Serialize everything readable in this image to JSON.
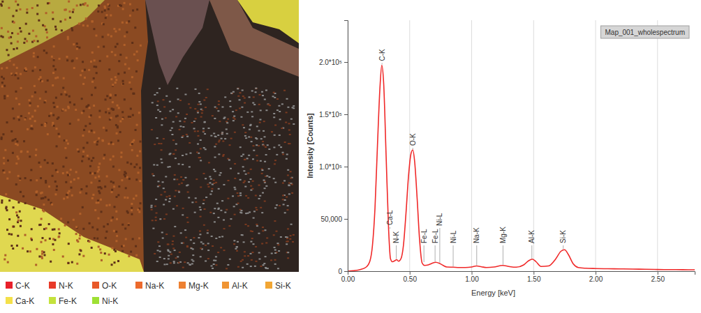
{
  "map": {
    "legend": [
      {
        "name": "C-K",
        "color": "#e8202a"
      },
      {
        "name": "N-K",
        "color": "#e83a28"
      },
      {
        "name": "O-K",
        "color": "#e85828"
      },
      {
        "name": "Na-K",
        "color": "#ec6a2c"
      },
      {
        "name": "Mg-K",
        "color": "#ee8030"
      },
      {
        "name": "Al-K",
        "color": "#f09432"
      },
      {
        "name": "Si-K",
        "color": "#f2a634"
      },
      {
        "name": "Ca-K",
        "color": "#f4e04a"
      },
      {
        "name": "Fe-K",
        "color": "#c4e23c"
      },
      {
        "name": "Ni-K",
        "color": "#9ee034"
      }
    ]
  },
  "chart_data": {
    "type": "line",
    "xlabel": "Energy [keV]",
    "ylabel": "Intensity [Counts]",
    "x": [
      0,
      0.05,
      0.1,
      0.15,
      0.18,
      0.2,
      0.22,
      0.24,
      0.26,
      0.275,
      0.29,
      0.31,
      0.33,
      0.345,
      0.36,
      0.38,
      0.395,
      0.41,
      0.43,
      0.45,
      0.47,
      0.49,
      0.51,
      0.525,
      0.54,
      0.56,
      0.58,
      0.6,
      0.62,
      0.65,
      0.68,
      0.71,
      0.74,
      0.77,
      0.8,
      0.85,
      0.9,
      0.95,
      1,
      1.04,
      1.08,
      1.12,
      1.18,
      1.25,
      1.3,
      1.36,
      1.42,
      1.46,
      1.49,
      1.52,
      1.56,
      1.62,
      1.68,
      1.72,
      1.75,
      1.78,
      1.82,
      1.86,
      1.92,
      2,
      2.1,
      2.2,
      2.3,
      2.4,
      2.5,
      2.6,
      2.7,
      2.8
    ],
    "series": [
      {
        "name": "Map_001_wholespectrum",
        "color": "#f02828",
        "values": [
          0,
          500,
          1500,
          4000,
          10000,
          25000,
          60000,
          120000,
          175000,
          197000,
          180000,
          110000,
          40000,
          12000,
          9000,
          10000,
          11000,
          9500,
          12000,
          25000,
          55000,
          90000,
          112000,
          116000,
          105000,
          70000,
          30000,
          8000,
          5500,
          6000,
          7500,
          8500,
          7500,
          5500,
          4000,
          3800,
          3500,
          3500,
          4000,
          5000,
          4200,
          3500,
          4000,
          5500,
          4500,
          3800,
          6000,
          10000,
          11500,
          9000,
          4500,
          5000,
          12000,
          19000,
          20500,
          16000,
          7000,
          3500,
          2800,
          2500,
          2300,
          2200,
          2000,
          1800,
          1600,
          1500,
          1400,
          1300
        ]
      }
    ],
    "xlim": [
      0,
      2.8
    ],
    "xticks": [
      {
        "value": 0,
        "label": "0.00"
      },
      {
        "value": 0.5,
        "label": "0.50"
      },
      {
        "value": 1,
        "label": "1.00"
      },
      {
        "value": 1.5,
        "label": "1.50"
      },
      {
        "value": 2,
        "label": "2.00"
      },
      {
        "value": 2.5,
        "label": "2.50"
      }
    ],
    "ylim": [
      0,
      240000
    ],
    "yticks": [
      0,
      {
        "value": 50000,
        "label": "50,000"
      },
      {
        "value": 100000,
        "label": "1.0*10⁵"
      },
      {
        "value": 150000,
        "label": "1.5*10⁵"
      },
      {
        "value": 200000,
        "label": "2.0*10⁵"
      }
    ],
    "grid": "x",
    "legend": "upper right",
    "annotations": [
      {
        "text": "C-K",
        "x": 0.277
      },
      {
        "text": "Ca-L",
        "x": 0.341
      },
      {
        "text": "N-K",
        "x": 0.392
      },
      {
        "text": "O-K",
        "x": 0.525
      },
      {
        "text": "Fe-L",
        "x": 0.615
      },
      {
        "text": "Fe-L",
        "x": 0.705
      },
      {
        "text": "Ni-L",
        "x": 0.743
      },
      {
        "text": "Ni-L",
        "x": 0.851
      },
      {
        "text": "Na-K",
        "x": 1.041
      },
      {
        "text": "Mg-K",
        "x": 1.253
      },
      {
        "text": "Al-K",
        "x": 1.486
      },
      {
        "text": "Si-K",
        "x": 1.739
      }
    ]
  }
}
